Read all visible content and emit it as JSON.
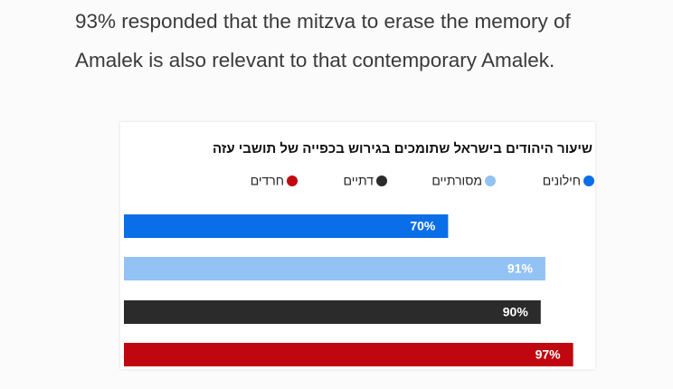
{
  "paragraph": "93% responded that the mitzva to erase the memory of Amalek is also relevant to that contemporary Amalek.",
  "chart_data": {
    "type": "bar",
    "orientation": "horizontal",
    "title": "שיעור היהודים בישראל שתומכים בגירוש בכפייה של תושבי עזה",
    "categories": [
      "חילונים",
      "מסורתיים",
      "דתיים",
      "חרדים"
    ],
    "values": [
      70,
      91,
      90,
      97
    ],
    "value_labels": [
      "70%",
      "91%",
      "90%",
      "97%"
    ],
    "colors": [
      "#0a6ee8",
      "#93c2f5",
      "#2b2b2b",
      "#c0070f"
    ]
  }
}
